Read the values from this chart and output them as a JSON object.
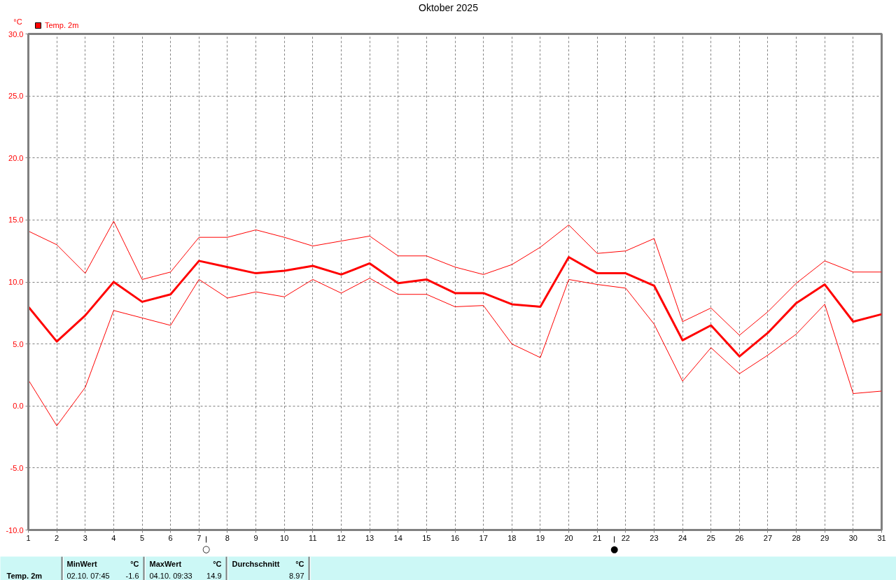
{
  "chart_data": {
    "type": "line",
    "title": "Oktober 2025",
    "ylabel": "°C",
    "x": [
      1,
      2,
      3,
      4,
      5,
      6,
      7,
      8,
      9,
      10,
      11,
      12,
      13,
      14,
      15,
      16,
      17,
      18,
      19,
      20,
      21,
      22,
      23,
      24,
      25,
      26,
      27,
      28,
      29,
      30,
      31
    ],
    "xlim": [
      1,
      31
    ],
    "xticks": [
      1,
      2,
      3,
      4,
      5,
      6,
      7,
      8,
      9,
      10,
      11,
      12,
      13,
      14,
      15,
      16,
      17,
      18,
      19,
      20,
      21,
      22,
      23,
      24,
      25,
      26,
      27,
      28,
      29,
      30,
      31
    ],
    "ylim": [
      -10,
      30
    ],
    "yticks": [
      {
        "value": -10,
        "label": "-10.0"
      },
      {
        "value": -5,
        "label": "-5.0"
      },
      {
        "value": 0,
        "label": "0.0"
      },
      {
        "value": 5,
        "label": "5.0"
      },
      {
        "value": 10,
        "label": "10.0"
      },
      {
        "value": 15,
        "label": "15.0"
      },
      {
        "value": 20,
        "label": "20.0"
      },
      {
        "value": 25,
        "label": "25.0"
      },
      {
        "value": 30,
        "label": "30.0"
      }
    ],
    "series": [
      {
        "name": "Temp. 2m",
        "color": "#ff0000",
        "values": [
          8.0,
          5.2,
          7.3,
          10.0,
          8.4,
          9.0,
          11.7,
          11.2,
          10.7,
          10.9,
          11.3,
          10.6,
          11.5,
          9.9,
          10.2,
          9.1,
          9.1,
          8.2,
          8.0,
          12.0,
          10.7,
          10.7,
          9.7,
          5.3,
          6.5,
          4.0,
          5.9,
          8.3,
          9.8,
          6.8,
          7.4
        ]
      },
      {
        "color": "#ff0000",
        "values": [
          14.1,
          13.0,
          10.7,
          14.9,
          10.2,
          10.8,
          13.6,
          13.6,
          14.2,
          13.6,
          12.9,
          13.3,
          13.7,
          12.1,
          12.1,
          11.2,
          10.6,
          11.4,
          12.8,
          14.6,
          12.3,
          12.5,
          13.5,
          6.8,
          7.9,
          5.7,
          7.6,
          9.9,
          11.7,
          10.8,
          10.8
        ]
      },
      {
        "color": "#ff0000",
        "values": [
          2.1,
          -1.6,
          1.5,
          7.7,
          7.1,
          6.5,
          10.2,
          8.7,
          9.2,
          8.8,
          10.2,
          9.1,
          10.3,
          9.0,
          9.0,
          8.0,
          8.1,
          5.0,
          3.9,
          10.2,
          9.8,
          9.5,
          6.6,
          2.0,
          4.7,
          2.6,
          4.1,
          5.8,
          8.2,
          1.0,
          1.2
        ]
      }
    ],
    "grid": true,
    "legend": "top left",
    "ref_lines": [
      {
        "axis": "x",
        "value": 7.25,
        "label": "○",
        "color": "#000000"
      },
      {
        "axis": "x",
        "value": 21.6,
        "label": "●",
        "color": "#000000"
      }
    ],
    "annotations": [
      "Temp. 2m",
      "MinWert",
      "°C",
      "02.10. 07:45",
      "-1.6",
      "MaxWert",
      "°C",
      "04.10. 09:33",
      "14.9",
      "Durchschnitt",
      "°C",
      "8.97"
    ]
  }
}
